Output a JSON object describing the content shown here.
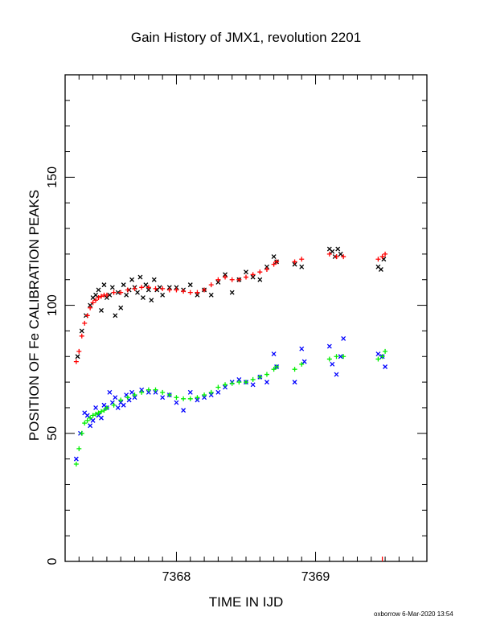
{
  "chart_data": {
    "type": "scatter",
    "title": "Gain History of JMX1, revolution 2201",
    "xlabel": "TIME IN IJD",
    "ylabel": "POSITION OF Fe CALIBRATION PEAKS",
    "xlim": [
      7367.2,
      7369.8
    ],
    "ylim": [
      0,
      190
    ],
    "x_ticks": [
      "7368",
      "7369"
    ],
    "y_ticks": [
      "0",
      "50",
      "100",
      "150"
    ],
    "grid": false,
    "series": [
      {
        "color": "#000000",
        "marker": "x",
        "x": [
          7367.29,
          7367.32,
          7367.35,
          7367.38,
          7367.4,
          7367.42,
          7367.44,
          7367.46,
          7367.48,
          7367.5,
          7367.52,
          7367.54,
          7367.56,
          7367.58,
          7367.6,
          7367.62,
          7367.64,
          7367.66,
          7367.68,
          7367.7,
          7367.72,
          7367.74,
          7367.76,
          7367.78,
          7367.8,
          7367.82,
          7367.84,
          7367.86,
          7367.88,
          7367.9,
          7367.95,
          7368.0,
          7368.05,
          7368.1,
          7368.15,
          7368.2,
          7368.25,
          7368.3,
          7368.35,
          7368.4,
          7368.45,
          7368.5,
          7368.55,
          7368.6,
          7368.65,
          7368.7,
          7368.72,
          7368.85,
          7368.9,
          7369.1,
          7369.12,
          7369.14,
          7369.16,
          7369.18,
          7369.45,
          7369.47,
          7369.49
        ],
        "y": [
          80,
          90,
          96,
          100,
          103,
          104,
          106,
          98,
          108,
          103,
          104,
          107,
          96,
          105,
          99,
          108,
          104,
          106,
          110,
          107,
          105,
          111,
          103,
          108,
          106,
          102,
          110,
          106,
          107,
          104,
          107,
          107,
          106,
          108,
          104,
          106,
          104,
          109,
          112,
          105,
          110,
          113,
          111,
          110,
          115,
          119,
          117,
          116,
          115,
          122,
          121,
          119,
          122,
          120,
          115,
          114,
          118
        ]
      },
      {
        "color": "#ff0000",
        "marker": "+",
        "x": [
          7367.28,
          7367.3,
          7367.32,
          7367.34,
          7367.36,
          7367.38,
          7367.4,
          7367.42,
          7367.44,
          7367.46,
          7367.48,
          7367.5,
          7367.55,
          7367.6,
          7367.65,
          7367.7,
          7367.75,
          7367.8,
          7367.85,
          7367.9,
          7367.95,
          7368.0,
          7368.05,
          7368.1,
          7368.15,
          7368.2,
          7368.25,
          7368.3,
          7368.35,
          7368.4,
          7368.45,
          7368.5,
          7368.55,
          7368.6,
          7368.65,
          7368.7,
          7368.72,
          7368.85,
          7368.9,
          7369.1,
          7369.15,
          7369.2,
          7369.45,
          7369.48,
          7369.5
        ],
        "y": [
          78,
          82,
          88,
          93,
          96,
          99,
          101,
          102,
          103,
          103.5,
          104,
          104,
          105,
          105,
          106,
          106.5,
          107,
          107,
          106.5,
          106.5,
          106,
          106,
          105.5,
          105,
          105,
          106,
          108,
          110,
          111,
          110,
          110,
          111,
          112,
          113,
          114,
          116,
          117,
          117,
          118,
          120,
          119,
          119,
          118,
          119,
          120
        ]
      },
      {
        "color": "#0000ff",
        "marker": "x",
        "x": [
          7367.28,
          7367.31,
          7367.34,
          7367.36,
          7367.38,
          7367.4,
          7367.42,
          7367.44,
          7367.46,
          7367.48,
          7367.5,
          7367.52,
          7367.54,
          7367.56,
          7367.58,
          7367.6,
          7367.62,
          7367.64,
          7367.66,
          7367.68,
          7367.7,
          7367.75,
          7367.8,
          7367.85,
          7367.9,
          7367.95,
          7368.0,
          7368.05,
          7368.1,
          7368.15,
          7368.2,
          7368.25,
          7368.3,
          7368.35,
          7368.4,
          7368.45,
          7368.5,
          7368.55,
          7368.6,
          7368.65,
          7368.7,
          7368.72,
          7368.85,
          7368.9,
          7368.92,
          7369.1,
          7369.12,
          7369.15,
          7369.18,
          7369.2,
          7369.45,
          7369.48,
          7369.5
        ],
        "y": [
          40,
          50,
          58,
          57,
          53,
          55,
          60,
          57,
          56,
          61,
          60,
          66,
          62,
          64,
          60,
          62,
          61,
          65,
          63,
          66,
          64,
          67,
          66,
          66,
          64,
          65,
          62,
          59,
          66,
          63,
          64,
          65,
          66,
          68,
          70,
          71,
          70,
          69,
          72,
          70,
          81,
          76,
          70,
          83,
          78,
          84,
          77,
          73,
          80,
          87,
          81,
          80,
          76
        ]
      },
      {
        "color": "#00ee00",
        "marker": "+",
        "x": [
          7367.28,
          7367.3,
          7367.32,
          7367.34,
          7367.36,
          7367.38,
          7367.4,
          7367.42,
          7367.44,
          7367.46,
          7367.48,
          7367.5,
          7367.55,
          7367.6,
          7367.65,
          7367.7,
          7367.75,
          7367.8,
          7367.85,
          7367.9,
          7367.95,
          7368.0,
          7368.05,
          7368.1,
          7368.15,
          7368.2,
          7368.25,
          7368.3,
          7368.35,
          7368.4,
          7368.45,
          7368.5,
          7368.55,
          7368.6,
          7368.65,
          7368.7,
          7368.72,
          7368.85,
          7368.9,
          7369.1,
          7369.15,
          7369.2,
          7369.45,
          7369.48,
          7369.5
        ],
        "y": [
          38,
          44,
          50,
          54,
          55,
          56,
          57,
          57.5,
          58,
          58.5,
          59,
          60,
          61,
          63,
          64,
          65,
          66,
          67,
          67,
          66,
          65,
          64,
          63.5,
          63.5,
          64,
          65,
          66,
          68,
          69,
          69.5,
          70,
          70,
          71,
          72,
          73,
          75,
          76,
          75,
          77,
          79,
          80,
          80,
          79,
          80,
          82
        ]
      },
      {
        "color": "#ff0000",
        "marker": "|",
        "x": [
          7369.48
        ],
        "y": [
          0
        ]
      }
    ]
  },
  "footer": {
    "credit": "oxborrow  6-Mar-2020 13:54"
  }
}
